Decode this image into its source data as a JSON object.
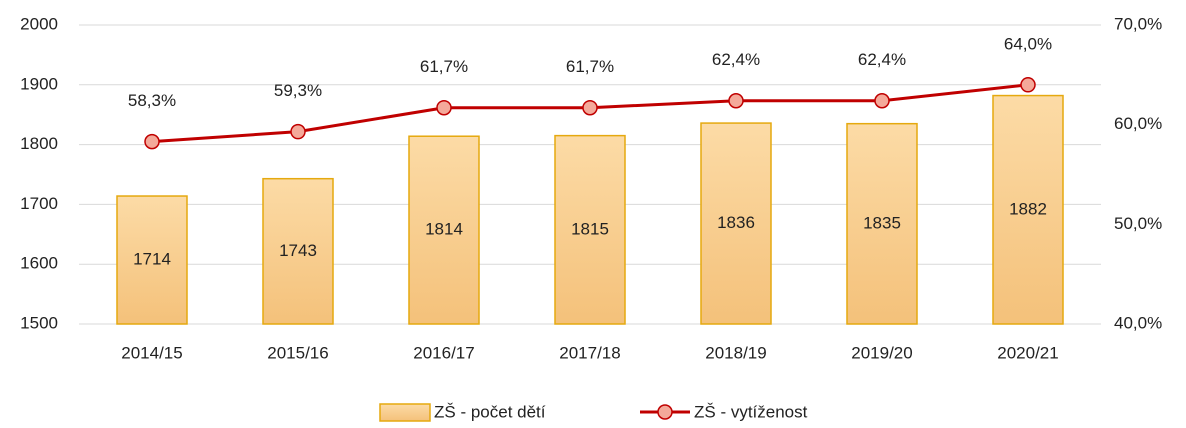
{
  "chart_data": {
    "type": "bar+line",
    "categories": [
      "2014/15",
      "2015/16",
      "2016/17",
      "2017/18",
      "2018/19",
      "2019/20",
      "2020/21"
    ],
    "series": [
      {
        "name": "ZŠ - počet dětí",
        "type": "bar",
        "color": "#f8cb85",
        "values": [
          1714,
          1743,
          1814,
          1815,
          1836,
          1835,
          1882
        ]
      },
      {
        "name": "ZŠ - vytíženost",
        "type": "line",
        "axis": "y2",
        "color": "#c00000",
        "values": [
          58.3,
          59.3,
          61.7,
          61.7,
          62.4,
          62.4,
          64.0
        ],
        "value_labels": [
          "58,3%",
          "59,3%",
          "61,7%",
          "61,7%",
          "62,4%",
          "62,4%",
          "64,0%"
        ]
      }
    ],
    "ylim": [
      1500,
      2000
    ],
    "yticks": [
      1500,
      1600,
      1700,
      1800,
      1900,
      2000
    ],
    "y2lim": [
      40,
      70
    ],
    "y2ticks": [
      {
        "value": 40,
        "label": "40,0%"
      },
      {
        "value": 50,
        "label": "50,0%"
      },
      {
        "value": 60,
        "label": "60,0%"
      },
      {
        "value": 70,
        "label": "70,0%"
      }
    ],
    "grid": true,
    "legend": "bottom"
  }
}
